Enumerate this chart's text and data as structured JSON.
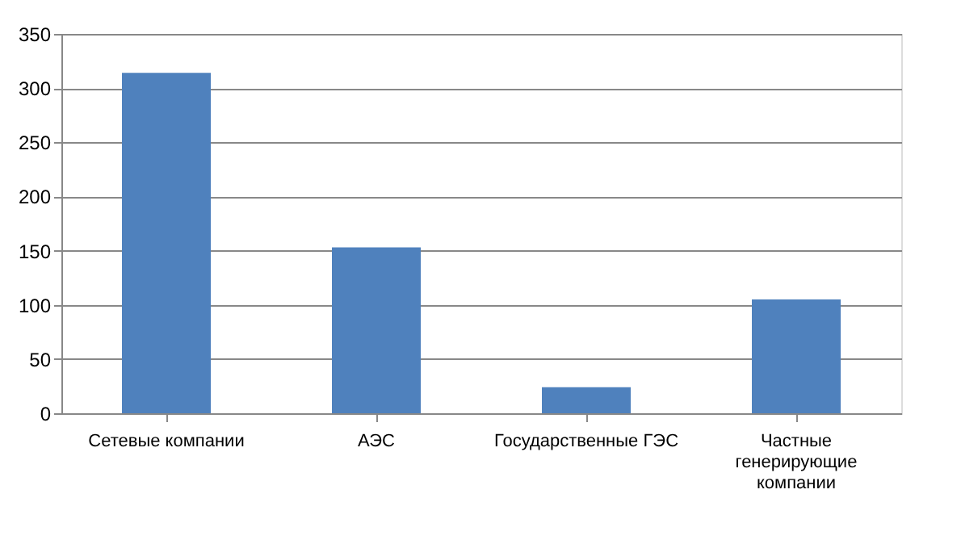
{
  "chart_data": {
    "type": "bar",
    "categories": [
      "Сетевые компании",
      "АЭС",
      "Государственные ГЭС",
      "Частные генерирующие компании"
    ],
    "values": [
      314,
      153,
      24,
      105
    ],
    "color": "#4f81bd",
    "ylim": [
      0,
      350
    ],
    "yticks": [
      0,
      50,
      100,
      150,
      200,
      250,
      300,
      350
    ],
    "grid": "y"
  }
}
